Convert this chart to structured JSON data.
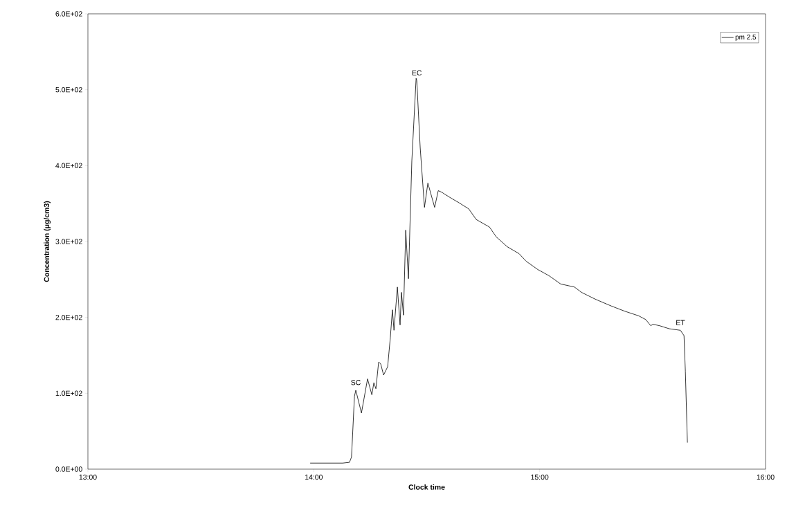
{
  "chart_data": {
    "type": "line",
    "xlabel": "Clock time",
    "ylabel": "Concentration (μg/cm3)",
    "x": [
      13.984,
      14.066,
      14.128,
      14.158,
      14.167,
      14.18,
      14.186,
      14.211,
      14.238,
      14.257,
      14.266,
      14.275,
      14.287,
      14.296,
      14.309,
      14.327,
      14.339,
      14.348,
      14.355,
      14.37,
      14.382,
      14.388,
      14.397,
      14.407,
      14.419,
      14.434,
      14.453,
      14.456,
      14.471,
      14.49,
      14.505,
      14.535,
      14.551,
      14.566,
      14.603,
      14.643,
      14.686,
      14.719,
      14.778,
      14.808,
      14.857,
      14.909,
      14.94,
      14.992,
      15.041,
      15.093,
      15.154,
      15.185,
      15.246,
      15.317,
      15.378,
      15.439,
      15.47,
      15.492,
      15.501,
      15.531,
      15.574,
      15.623,
      15.639,
      15.645,
      15.654
    ],
    "series": [
      {
        "name": "pm 2.5",
        "color": "#000000",
        "values": [
          8,
          8,
          8,
          9,
          16,
          96,
          104,
          74,
          119,
          98,
          114,
          106,
          141,
          139,
          124,
          135,
          174,
          210,
          183,
          240,
          190,
          233,
          203,
          315,
          251,
          406,
          515,
          512,
          424,
          345,
          377,
          345,
          367,
          365,
          358,
          351,
          343,
          329,
          319,
          306,
          293,
          284,
          274,
          263,
          255,
          244,
          240,
          233,
          224,
          215,
          208,
          202,
          197,
          189,
          191,
          189,
          185,
          183,
          176,
          129,
          35
        ]
      }
    ],
    "xlim": [
      13,
      16
    ],
    "xticks": [
      {
        "value": 13,
        "label": "13:00"
      },
      {
        "value": 14,
        "label": "14:00"
      },
      {
        "value": 15,
        "label": "15:00"
      },
      {
        "value": 16,
        "label": "16:00"
      }
    ],
    "ylim": [
      0,
      600
    ],
    "yticks": [
      {
        "value": 0,
        "label": "0.0E+00"
      },
      {
        "value": 100,
        "label": "1.0E+02"
      },
      {
        "value": 200,
        "label": "2.0E+02"
      },
      {
        "value": 300,
        "label": "3.0E+02"
      },
      {
        "value": 400,
        "label": "4.0E+02"
      },
      {
        "value": 500,
        "label": "5.0E+02"
      },
      {
        "value": 600,
        "label": "6.0E+02"
      }
    ],
    "annotations": [
      {
        "text": "SC",
        "x": 14.186,
        "y": 104
      },
      {
        "text": "EC",
        "x": 14.456,
        "y": 512
      },
      {
        "text": "ET",
        "x": 15.623,
        "y": 183
      }
    ],
    "legend": "top right",
    "grid": false,
    "marker": "none",
    "line_style": "solid"
  }
}
